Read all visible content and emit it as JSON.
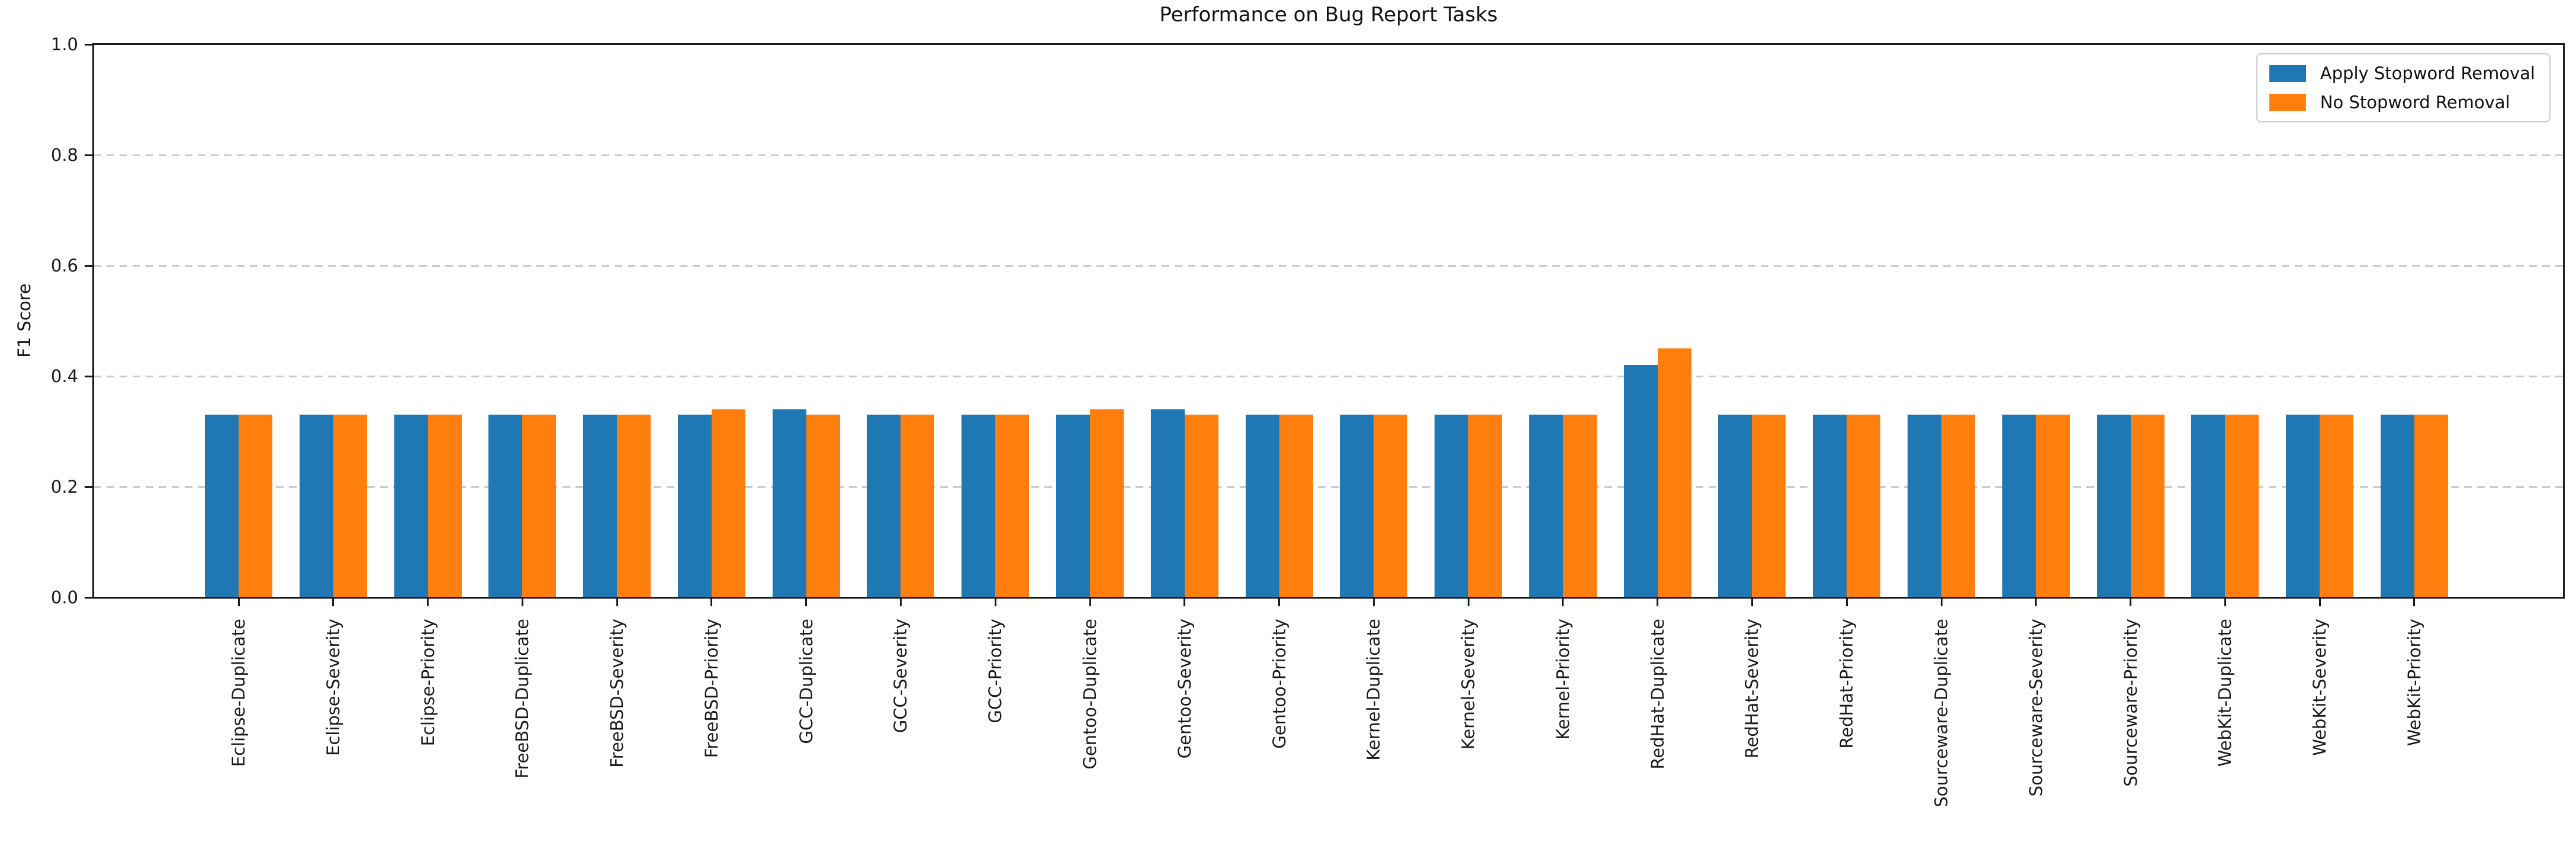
{
  "chart_data": {
    "type": "bar",
    "title": "Performance on Bug Report Tasks",
    "xlabel": "",
    "ylabel": "F1 Score",
    "ylim": [
      0.0,
      1.0
    ],
    "yticks": [
      0.0,
      0.2,
      0.4,
      0.6,
      0.8,
      1.0
    ],
    "grid": "horizontal-dashed",
    "legend_position": "upper right",
    "categories": [
      "Eclipse-Duplicate",
      "Eclipse-Severity",
      "Eclipse-Priority",
      "FreeBSD-Duplicate",
      "FreeBSD-Severity",
      "FreeBSD-Priority",
      "GCC-Duplicate",
      "GCC-Severity",
      "GCC-Priority",
      "Gentoo-Duplicate",
      "Gentoo-Severity",
      "Gentoo-Priority",
      "Kernel-Duplicate",
      "Kernel-Severity",
      "Kernel-Priority",
      "RedHat-Duplicate",
      "RedHat-Severity",
      "RedHat-Priority",
      "Sourceware-Duplicate",
      "Sourceware-Severity",
      "Sourceware-Priority",
      "WebKit-Duplicate",
      "WebKit-Severity",
      "WebKit-Priority"
    ],
    "series": [
      {
        "name": "Apply Stopword Removal",
        "color": "#1f77b4",
        "values": [
          0.33,
          0.33,
          0.33,
          0.33,
          0.33,
          0.33,
          0.34,
          0.33,
          0.33,
          0.33,
          0.34,
          0.33,
          0.33,
          0.33,
          0.33,
          0.42,
          0.33,
          0.33,
          0.33,
          0.33,
          0.33,
          0.33,
          0.33,
          0.33
        ]
      },
      {
        "name": "No Stopword Removal",
        "color": "#ff7f0e",
        "values": [
          0.33,
          0.33,
          0.33,
          0.33,
          0.33,
          0.34,
          0.33,
          0.33,
          0.33,
          0.34,
          0.33,
          0.33,
          0.33,
          0.33,
          0.33,
          0.45,
          0.33,
          0.33,
          0.33,
          0.33,
          0.33,
          0.33,
          0.33,
          0.33
        ]
      }
    ]
  }
}
